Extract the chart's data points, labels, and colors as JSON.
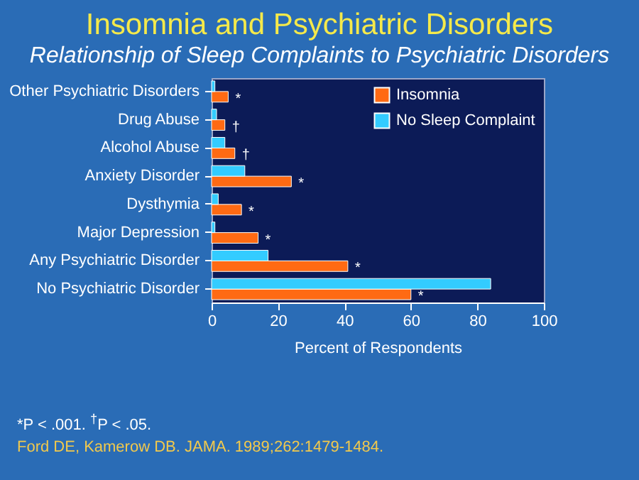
{
  "chart_data": {
    "type": "bar",
    "orientation": "horizontal",
    "title": "Insomnia and Psychiatric Disorders",
    "subtitle": "Relationship of Sleep Complaints to Psychiatric Disorders",
    "xlabel": "Percent of Respondents",
    "categories": [
      "Other Psychiatric Disorders",
      "Drug Abuse",
      "Alcohol Abuse",
      "Anxiety Disorder",
      "Dysthymia",
      "Major Depression",
      "Any Psychiatric Disorder",
      "No Psychiatric Disorder"
    ],
    "series": [
      {
        "name": "Insomnia",
        "color": "#ff6a13",
        "values": [
          5,
          4,
          7,
          24,
          9,
          14,
          41,
          60
        ]
      },
      {
        "name": "No Sleep Complaint",
        "color": "#33ccff",
        "values": [
          1,
          1.5,
          4,
          10,
          2,
          1,
          17,
          84
        ]
      }
    ],
    "xlim": [
      0,
      100
    ],
    "xticks": [
      0,
      20,
      40,
      60,
      80,
      100
    ],
    "legend": "top right",
    "annotations": [
      {
        "text": "*",
        "x": 5,
        "y": "Other Psychiatric Disorders"
      },
      {
        "text": "†",
        "x": 4,
        "y": "Drug Abuse"
      },
      {
        "text": "†",
        "x": 7,
        "y": "Alcohol Abuse"
      },
      {
        "text": "*",
        "x": 24,
        "y": "Anxiety Disorder"
      },
      {
        "text": "*",
        "x": 9,
        "y": "Dysthymia"
      },
      {
        "text": "*",
        "x": 14,
        "y": "Major Depression"
      },
      {
        "text": "*",
        "x": 41,
        "y": "Any Psychiatric Disorder"
      },
      {
        "text": "*",
        "x": 60,
        "y": "No Psychiatric Disorder"
      },
      "*P < .001. $^{†}$P < .05.",
      "Ford DE, Kamerow DB. JAMA. 1989;262:1479-1484."
    ]
  }
}
